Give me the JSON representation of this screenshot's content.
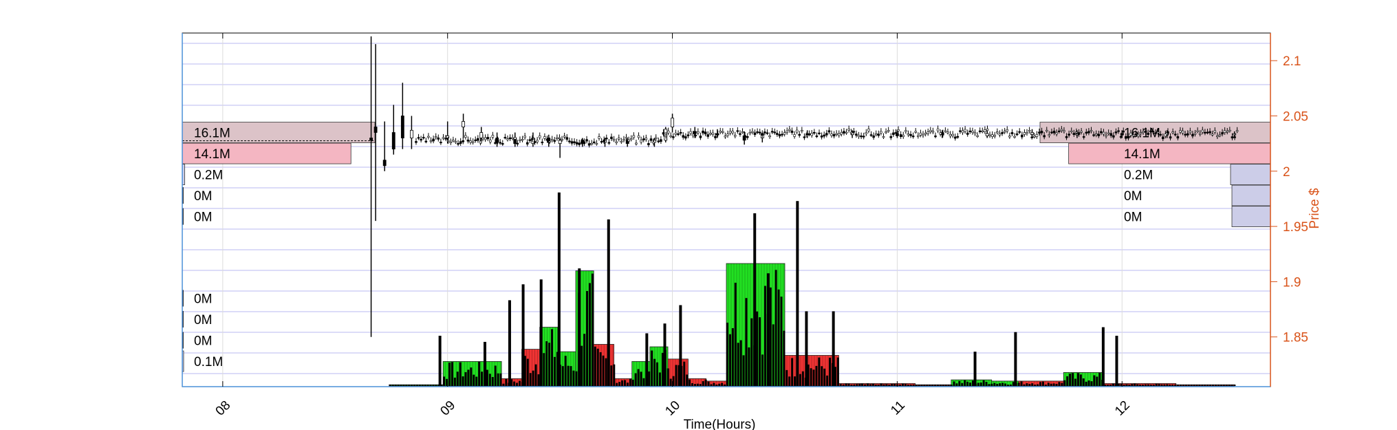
{
  "chart_data": {
    "type": "candlestick-volume-profile",
    "xlabel": "Time(Hours)",
    "ylabel": "Price $",
    "x_ticks": [
      "08",
      "09",
      "10",
      "11",
      "12"
    ],
    "x_range_hours": [
      7.82,
      12.66
    ],
    "y_range": [
      1.805,
      2.125
    ],
    "y_ticks": [
      1.85,
      1.9,
      1.95,
      2,
      2.05,
      2.1
    ],
    "y_tick_labels": [
      "1.85",
      "1.9",
      "1.95",
      "2",
      "2.05",
      "2.1"
    ],
    "grid": true,
    "price_levels": [
      2.035,
      2.016,
      1.997,
      1.978,
      1.959,
      1.885,
      1.866,
      1.847,
      1.828
    ],
    "left_profile": [
      {
        "label": "16.1M",
        "volume_m": 16.1,
        "style": "ask"
      },
      {
        "label": "14.1M",
        "volume_m": 14.1,
        "style": "bid"
      },
      {
        "label": "0.2M",
        "volume_m": 0.2,
        "style": "neutral"
      },
      {
        "label": "0M",
        "volume_m": 0.0,
        "style": "none"
      },
      {
        "label": "0M",
        "volume_m": 0.0,
        "style": "none"
      },
      {
        "label": "0M",
        "volume_m": 0.0,
        "style": "none"
      },
      {
        "label": "0M",
        "volume_m": 0.0,
        "style": "none"
      },
      {
        "label": "0M",
        "volume_m": 0.0,
        "style": "none"
      },
      {
        "label": "0.1M",
        "volume_m": 0.1,
        "style": "neutral"
      }
    ],
    "right_profile": [
      {
        "label": "16.1M",
        "volume_m": 16.1,
        "style": "ask"
      },
      {
        "label": "14.1M",
        "volume_m": 14.1,
        "style": "bid"
      },
      {
        "label": "0.2M",
        "volume_m": 0.2,
        "style": "neutral"
      },
      {
        "label": "0M",
        "volume_m": 0.0,
        "style": "neutral"
      },
      {
        "label": "0M",
        "volume_m": 0.0,
        "style": "neutral"
      }
    ],
    "volume_blocks": [
      {
        "t0": 8.74,
        "t1": 8.98,
        "level": 0.01,
        "color": "green"
      },
      {
        "t0": 8.98,
        "t1": 9.24,
        "level": 0.2,
        "color": "green"
      },
      {
        "t0": 9.24,
        "t1": 9.33,
        "level": 0.06,
        "color": "red"
      },
      {
        "t0": 9.33,
        "t1": 9.41,
        "level": 0.3,
        "color": "red"
      },
      {
        "t0": 9.41,
        "t1": 9.49,
        "level": 0.48,
        "color": "green"
      },
      {
        "t0": 9.49,
        "t1": 9.57,
        "level": 0.28,
        "color": "green"
      },
      {
        "t0": 9.57,
        "t1": 9.65,
        "level": 0.94,
        "color": "green"
      },
      {
        "t0": 9.65,
        "t1": 9.74,
        "level": 0.34,
        "color": "red"
      },
      {
        "t0": 9.74,
        "t1": 9.82,
        "level": 0.06,
        "color": "red"
      },
      {
        "t0": 9.82,
        "t1": 9.9,
        "level": 0.2,
        "color": "green"
      },
      {
        "t0": 9.9,
        "t1": 9.98,
        "level": 0.32,
        "color": "green"
      },
      {
        "t0": 9.98,
        "t1": 10.07,
        "level": 0.22,
        "color": "red"
      },
      {
        "t0": 10.07,
        "t1": 10.15,
        "level": 0.06,
        "color": "red"
      },
      {
        "t0": 10.15,
        "t1": 10.24,
        "level": 0.04,
        "color": "red"
      },
      {
        "t0": 10.24,
        "t1": 10.5,
        "level": 1.0,
        "color": "green"
      },
      {
        "t0": 10.5,
        "t1": 10.74,
        "level": 0.25,
        "color": "red"
      },
      {
        "t0": 10.74,
        "t1": 10.84,
        "level": 0.02,
        "color": "red"
      },
      {
        "t0": 10.84,
        "t1": 11.08,
        "level": 0.02,
        "color": "red"
      },
      {
        "t0": 11.08,
        "t1": 11.24,
        "level": 0.01,
        "color": "red"
      },
      {
        "t0": 11.24,
        "t1": 11.42,
        "level": 0.05,
        "color": "green"
      },
      {
        "t0": 11.42,
        "t1": 11.54,
        "level": 0.04,
        "color": "green"
      },
      {
        "t0": 11.54,
        "t1": 11.74,
        "level": 0.04,
        "color": "red"
      },
      {
        "t0": 11.74,
        "t1": 11.92,
        "level": 0.11,
        "color": "green"
      },
      {
        "t0": 11.92,
        "t1": 12.24,
        "level": 0.02,
        "color": "red"
      },
      {
        "t0": 12.24,
        "t1": 12.5,
        "level": 0.01,
        "color": "red"
      }
    ],
    "volume_spikes": [
      {
        "t": 8.96,
        "level": 0.41
      },
      {
        "t": 9.16,
        "level": 0.36
      },
      {
        "t": 9.27,
        "level": 0.7
      },
      {
        "t": 9.33,
        "level": 0.83
      },
      {
        "t": 9.41,
        "level": 0.87
      },
      {
        "t": 9.49,
        "level": 1.58
      },
      {
        "t": 9.58,
        "level": 0.96
      },
      {
        "t": 9.71,
        "level": 1.36
      },
      {
        "t": 9.88,
        "level": 0.43
      },
      {
        "t": 9.96,
        "level": 0.51
      },
      {
        "t": 10.03,
        "level": 0.66
      },
      {
        "t": 10.36,
        "level": 1.41
      },
      {
        "t": 10.42,
        "level": 0.92
      },
      {
        "t": 10.55,
        "level": 1.51
      },
      {
        "t": 10.59,
        "level": 0.61
      },
      {
        "t": 10.71,
        "level": 0.61
      },
      {
        "t": 11.34,
        "level": 0.28
      },
      {
        "t": 11.52,
        "level": 0.44
      },
      {
        "t": 11.91,
        "level": 0.48
      },
      {
        "t": 11.97,
        "level": 0.41
      }
    ],
    "price_series": [
      {
        "t": 8.66,
        "o": 2.03,
        "h": 2.122,
        "l": 1.85,
        "c": 2.028
      },
      {
        "t": 8.68,
        "o": 2.04,
        "h": 2.115,
        "l": 1.955,
        "c": 2.035
      },
      {
        "t": 8.72,
        "o": 2.01,
        "h": 2.045,
        "l": 2.0,
        "c": 2.005
      },
      {
        "t": 8.76,
        "o": 2.035,
        "h": 2.06,
        "l": 2.015,
        "c": 2.02
      },
      {
        "t": 8.8,
        "o": 2.05,
        "h": 2.08,
        "l": 2.02,
        "c": 2.03
      },
      {
        "t": 8.84,
        "o": 2.03,
        "h": 2.05,
        "l": 2.02,
        "c": 2.037
      },
      {
        "t": 9.0,
        "o": 2.03,
        "h": 2.045,
        "l": 2.025,
        "c": 2.032
      },
      {
        "t": 9.07,
        "o": 2.04,
        "h": 2.052,
        "l": 2.03,
        "c": 2.045
      },
      {
        "t": 9.15,
        "o": 2.03,
        "h": 2.04,
        "l": 2.025,
        "c": 2.035
      },
      {
        "t": 9.22,
        "o": 2.03,
        "h": 2.035,
        "l": 2.022,
        "c": 2.026
      },
      {
        "t": 9.3,
        "o": 2.03,
        "h": 2.035,
        "l": 2.022,
        "c": 2.025
      },
      {
        "t": 9.38,
        "o": 2.025,
        "h": 2.035,
        "l": 2.022,
        "c": 2.03
      },
      {
        "t": 9.45,
        "o": 2.03,
        "h": 2.033,
        "l": 2.022,
        "c": 2.026
      },
      {
        "t": 9.5,
        "o": 2.025,
        "h": 2.03,
        "l": 2.012,
        "c": 2.028
      },
      {
        "t": 9.6,
        "o": 2.028,
        "h": 2.03,
        "l": 2.022,
        "c": 2.025
      },
      {
        "t": 9.7,
        "o": 2.026,
        "h": 2.03,
        "l": 2.022,
        "c": 2.028
      },
      {
        "t": 9.8,
        "o": 2.028,
        "h": 2.03,
        "l": 2.022,
        "c": 2.025
      },
      {
        "t": 9.92,
        "o": 2.026,
        "h": 2.03,
        "l": 2.022,
        "c": 2.028
      },
      {
        "t": 9.97,
        "o": 2.028,
        "h": 2.04,
        "l": 2.026,
        "c": 2.038
      },
      {
        "t": 10.0,
        "o": 2.04,
        "h": 2.052,
        "l": 2.035,
        "c": 2.048
      },
      {
        "t": 10.1,
        "o": 2.036,
        "h": 2.04,
        "l": 2.03,
        "c": 2.034
      },
      {
        "t": 10.2,
        "o": 2.034,
        "h": 2.038,
        "l": 2.03,
        "c": 2.033
      },
      {
        "t": 10.32,
        "o": 2.032,
        "h": 2.036,
        "l": 2.024,
        "c": 2.028
      },
      {
        "t": 10.4,
        "o": 2.03,
        "h": 2.035,
        "l": 2.026,
        "c": 2.034
      },
      {
        "t": 10.6,
        "o": 2.034,
        "h": 2.037,
        "l": 2.03,
        "c": 2.033
      },
      {
        "t": 10.8,
        "o": 2.033,
        "h": 2.037,
        "l": 2.03,
        "c": 2.035
      },
      {
        "t": 11.0,
        "o": 2.034,
        "h": 2.037,
        "l": 2.03,
        "c": 2.032
      },
      {
        "t": 11.2,
        "o": 2.033,
        "h": 2.037,
        "l": 2.03,
        "c": 2.035
      },
      {
        "t": 11.4,
        "o": 2.032,
        "h": 2.037,
        "l": 2.03,
        "c": 2.034
      },
      {
        "t": 11.6,
        "o": 2.033,
        "h": 2.038,
        "l": 2.03,
        "c": 2.035
      },
      {
        "t": 11.8,
        "o": 2.033,
        "h": 2.037,
        "l": 2.03,
        "c": 2.034
      },
      {
        "t": 12.0,
        "o": 2.034,
        "h": 2.037,
        "l": 2.03,
        "c": 2.033
      },
      {
        "t": 12.2,
        "o": 2.033,
        "h": 2.037,
        "l": 2.03,
        "c": 2.035
      },
      {
        "t": 12.5,
        "o": 2.034,
        "h": 2.036,
        "l": 2.031,
        "c": 2.034
      }
    ],
    "colors": {
      "axis_right": "#d95319",
      "grid": "#b8b8f0",
      "axis_box": "#4a90d9",
      "bid_band": "#f4b6c2",
      "ask_band": "#dcc3c8",
      "neutral_band": "#cccde8",
      "up_volume": "#22e022",
      "down_volume": "#ee3333"
    }
  }
}
